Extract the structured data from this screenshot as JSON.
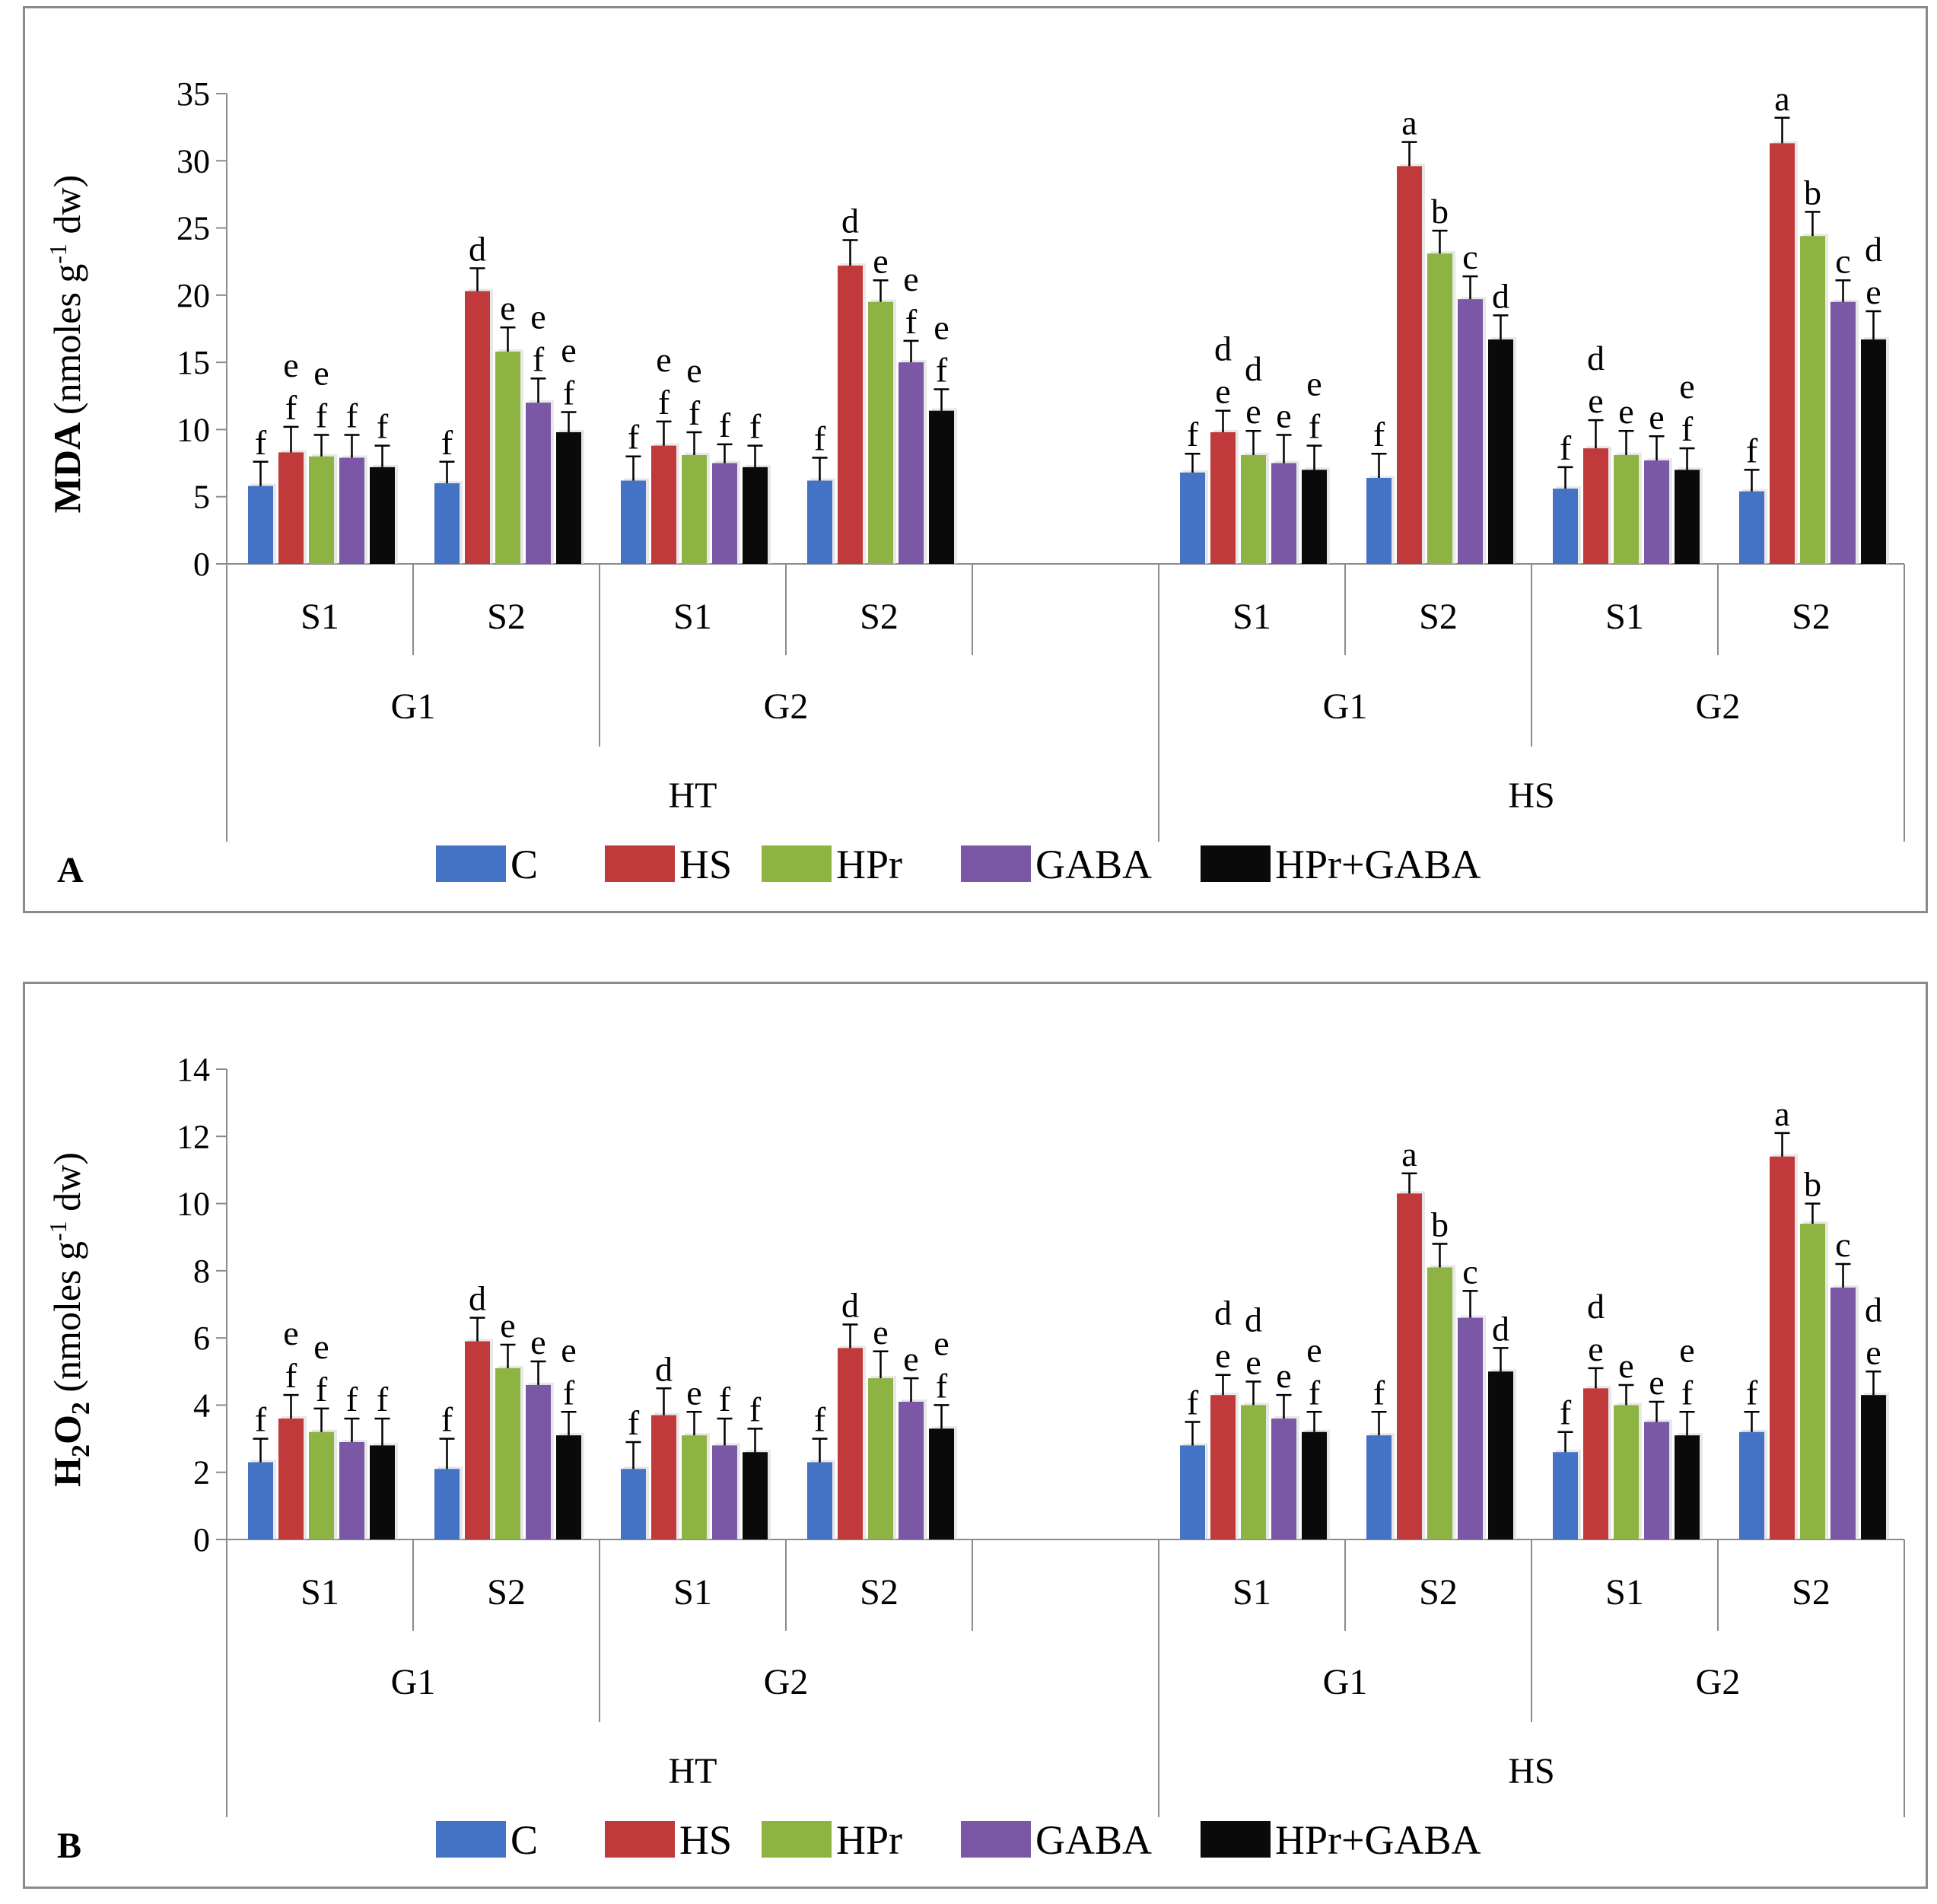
{
  "legend": [
    {
      "label": "C",
      "color": "#4472C4"
    },
    {
      "label": "HS",
      "color": "#C0393B"
    },
    {
      "label": "HPr",
      "color": "#8DB443"
    },
    {
      "label": "GABA",
      "color": "#7B58A6"
    },
    {
      "label": "HPr+GABA",
      "color": "#0a0a0a"
    }
  ],
  "chart_data": [
    {
      "type": "bar",
      "panel_label": "A",
      "ylabel": "MDA (nmoles g-1 dw)",
      "ylabel_parts": {
        "bold": "MDA",
        "pre_sup": "(nmoles  g",
        "sup": "-1",
        "post_sup": " dw)"
      },
      "ylim": [
        0,
        35
      ],
      "yticks": [
        0,
        5,
        10,
        15,
        20,
        25,
        30,
        35
      ],
      "group_labels": {
        "level1": [
          "S1",
          "S2",
          "S1",
          "S2",
          "",
          "S1",
          "S2",
          "S1",
          "S2"
        ],
        "level2": [
          {
            "label": "G1",
            "span": [
              0,
              1
            ]
          },
          {
            "label": "G2",
            "span": [
              2,
              4
            ]
          },
          {
            "label": "G1",
            "span": [
              5,
              6
            ]
          },
          {
            "label": "G2",
            "span": [
              7,
              8
            ]
          }
        ],
        "level3": [
          {
            "label": "HT",
            "span": [
              0,
              4
            ]
          },
          {
            "label": "HS",
            "span": [
              5,
              8
            ]
          }
        ]
      },
      "groups": [
        {
          "values": [
            5.8,
            8.3,
            8.0,
            7.9,
            7.2
          ],
          "errors": [
            1.8,
            1.9,
            1.6,
            1.7,
            1.6
          ],
          "letters": [
            "f",
            "e\nf",
            "e\nf",
            "f",
            "f"
          ]
        },
        {
          "values": [
            6.0,
            20.3,
            15.8,
            12.0,
            9.8
          ],
          "errors": [
            1.6,
            1.7,
            1.8,
            1.8,
            1.5
          ],
          "letters": [
            "f",
            "d",
            "e",
            "e\nf",
            "e\nf"
          ]
        },
        {
          "values": [
            6.2,
            8.8,
            8.1,
            7.5,
            7.2
          ],
          "errors": [
            1.8,
            1.8,
            1.7,
            1.4,
            1.6
          ],
          "letters": [
            "f",
            "e\nf",
            "e\nf",
            "f",
            "f"
          ]
        },
        {
          "values": [
            6.2,
            22.2,
            19.5,
            15.0,
            11.4
          ],
          "errors": [
            1.7,
            1.9,
            1.6,
            1.6,
            1.6
          ],
          "letters": [
            "f",
            "d",
            "e",
            "e\nf",
            "e\nf"
          ]
        },
        {
          "values": null,
          "errors": null,
          "letters": null
        },
        {
          "values": [
            6.8,
            9.8,
            8.1,
            7.5,
            7.0
          ],
          "errors": [
            1.4,
            1.6,
            1.8,
            2.1,
            1.8
          ],
          "letters": [
            "f",
            "d\ne",
            "d\ne",
            "e",
            "e\nf"
          ]
        },
        {
          "values": [
            6.4,
            29.6,
            23.1,
            19.7,
            16.7
          ],
          "errors": [
            1.8,
            1.8,
            1.7,
            1.7,
            1.8
          ],
          "letters": [
            "f",
            "a",
            "b",
            "c",
            "d"
          ]
        },
        {
          "values": [
            5.6,
            8.6,
            8.1,
            7.7,
            7.0
          ],
          "errors": [
            1.6,
            2.1,
            1.8,
            1.8,
            1.6
          ],
          "letters": [
            "f",
            "d\ne",
            "e",
            "e",
            "e\nf"
          ]
        },
        {
          "values": [
            5.4,
            31.3,
            24.4,
            19.5,
            16.7
          ],
          "errors": [
            1.6,
            1.9,
            1.8,
            1.6,
            2.1
          ],
          "letters": [
            "f",
            "a",
            "b",
            "c",
            "d\ne"
          ]
        }
      ]
    },
    {
      "type": "bar",
      "panel_label": "B",
      "ylabel": "H2O2 (nmoles g-1 dw)",
      "ylabel_parts": {
        "bold": "H2O2",
        "pre_sup": "(nmoles  g",
        "sup": "-1",
        "post_sup": " dw)"
      },
      "ylim": [
        0,
        14
      ],
      "yticks": [
        0,
        2,
        4,
        6,
        8,
        10,
        12,
        14
      ],
      "group_labels": {
        "level1": [
          "S1",
          "S2",
          "S1",
          "S2",
          "",
          "S1",
          "S2",
          "S1",
          "S2"
        ],
        "level2": [
          {
            "label": "G1",
            "span": [
              0,
              1
            ]
          },
          {
            "label": "G2",
            "span": [
              2,
              4
            ]
          },
          {
            "label": "G1",
            "span": [
              5,
              6
            ]
          },
          {
            "label": "G2",
            "span": [
              7,
              8
            ]
          }
        ],
        "level3": [
          {
            "label": "HT",
            "span": [
              0,
              4
            ]
          },
          {
            "label": "HS",
            "span": [
              5,
              8
            ]
          }
        ]
      },
      "groups": [
        {
          "values": [
            2.3,
            3.6,
            3.2,
            2.9,
            2.8
          ],
          "errors": [
            0.7,
            0.7,
            0.7,
            0.7,
            0.8
          ],
          "letters": [
            "f",
            "e\nf",
            "e\nf",
            "f",
            "f"
          ]
        },
        {
          "values": [
            2.1,
            5.9,
            5.1,
            4.6,
            3.1
          ],
          "errors": [
            0.9,
            0.7,
            0.7,
            0.7,
            0.7
          ],
          "letters": [
            "f",
            "d",
            "e",
            "e",
            "e\nf"
          ]
        },
        {
          "values": [
            2.1,
            3.7,
            3.1,
            2.8,
            2.6
          ],
          "errors": [
            0.8,
            0.8,
            0.7,
            0.8,
            0.7
          ],
          "letters": [
            "f",
            "d",
            "e",
            "f",
            "f"
          ]
        },
        {
          "values": [
            2.3,
            5.7,
            4.8,
            4.1,
            3.3
          ],
          "errors": [
            0.7,
            0.7,
            0.8,
            0.7,
            0.7
          ],
          "letters": [
            "f",
            "d",
            "e",
            "e",
            "e\nf"
          ]
        },
        {
          "values": null,
          "errors": null,
          "letters": null
        },
        {
          "values": [
            2.8,
            4.3,
            4.0,
            3.6,
            3.2
          ],
          "errors": [
            0.7,
            0.6,
            0.7,
            0.7,
            0.6
          ],
          "letters": [
            "f",
            "d\ne",
            "d\ne",
            "e",
            "e\nf"
          ]
        },
        {
          "values": [
            3.1,
            10.3,
            8.1,
            6.6,
            5.0
          ],
          "errors": [
            0.7,
            0.6,
            0.7,
            0.8,
            0.7
          ],
          "letters": [
            "f",
            "a",
            "b",
            "c",
            "d"
          ]
        },
        {
          "values": [
            2.6,
            4.5,
            4.0,
            3.5,
            3.1
          ],
          "errors": [
            0.6,
            0.6,
            0.6,
            0.6,
            0.7
          ],
          "letters": [
            "f",
            "d\ne",
            "e",
            "e",
            "e\nf"
          ]
        },
        {
          "values": [
            3.2,
            11.4,
            9.4,
            7.5,
            4.3
          ],
          "errors": [
            0.6,
            0.7,
            0.6,
            0.7,
            0.7
          ],
          "letters": [
            "f",
            "a",
            "b",
            "c",
            "d\ne"
          ]
        }
      ]
    }
  ]
}
